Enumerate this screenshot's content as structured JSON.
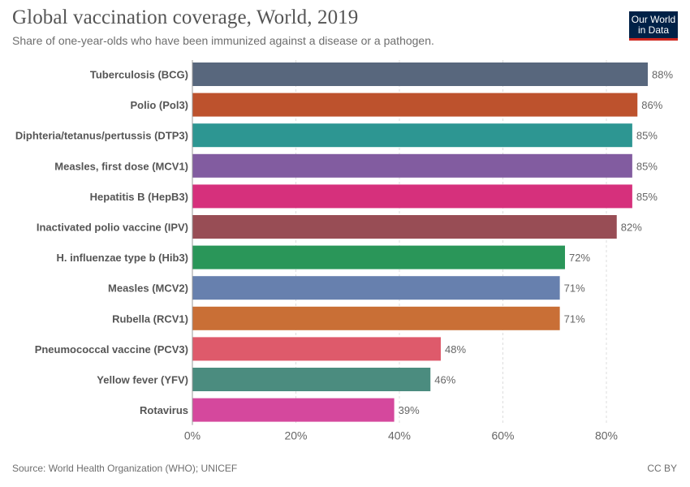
{
  "header": {
    "title": "Global vaccination coverage, World, 2019",
    "subtitle": "Share of one-year-olds who have been immunized against a disease or a pathogen.",
    "logo_line1": "Our World",
    "logo_line2": "in Data"
  },
  "footer": {
    "source": "Source: World Health Organization (WHO); UNICEF",
    "license": "CC BY"
  },
  "chart_data": {
    "type": "bar",
    "orientation": "horizontal",
    "title": "Global vaccination coverage, World, 2019",
    "subtitle": "Share of one-year-olds who have been immunized against a disease or a pathogen.",
    "xlabel": "",
    "ylabel": "",
    "xlim": [
      0,
      88
    ],
    "xticks": [
      0,
      20,
      40,
      60,
      80
    ],
    "tick_suffix": "%",
    "value_suffix": "%",
    "grid": true,
    "categories": [
      "Tuberculosis (BCG)",
      "Polio (Pol3)",
      "Diphteria/tetanus/pertussis (DTP3)",
      "Measles, first dose (MCV1)",
      "Hepatitis B (HepB3)",
      "Inactivated polio vaccine (IPV)",
      "H. influenzae type b (Hib3)",
      "Measles (MCV2)",
      "Rubella (RCV1)",
      "Pneumococcal vaccine (PCV3)",
      "Yellow fever (YFV)",
      "Rotavirus"
    ],
    "values": [
      88,
      86,
      85,
      85,
      85,
      82,
      72,
      71,
      71,
      48,
      46,
      39
    ],
    "colors": [
      "#58677d",
      "#bd522d",
      "#2d9692",
      "#825ca0",
      "#d6307c",
      "#984d55",
      "#2a9659",
      "#6780ae",
      "#c96f36",
      "#de5a6b",
      "#4b8c7f",
      "#d5489d"
    ]
  }
}
